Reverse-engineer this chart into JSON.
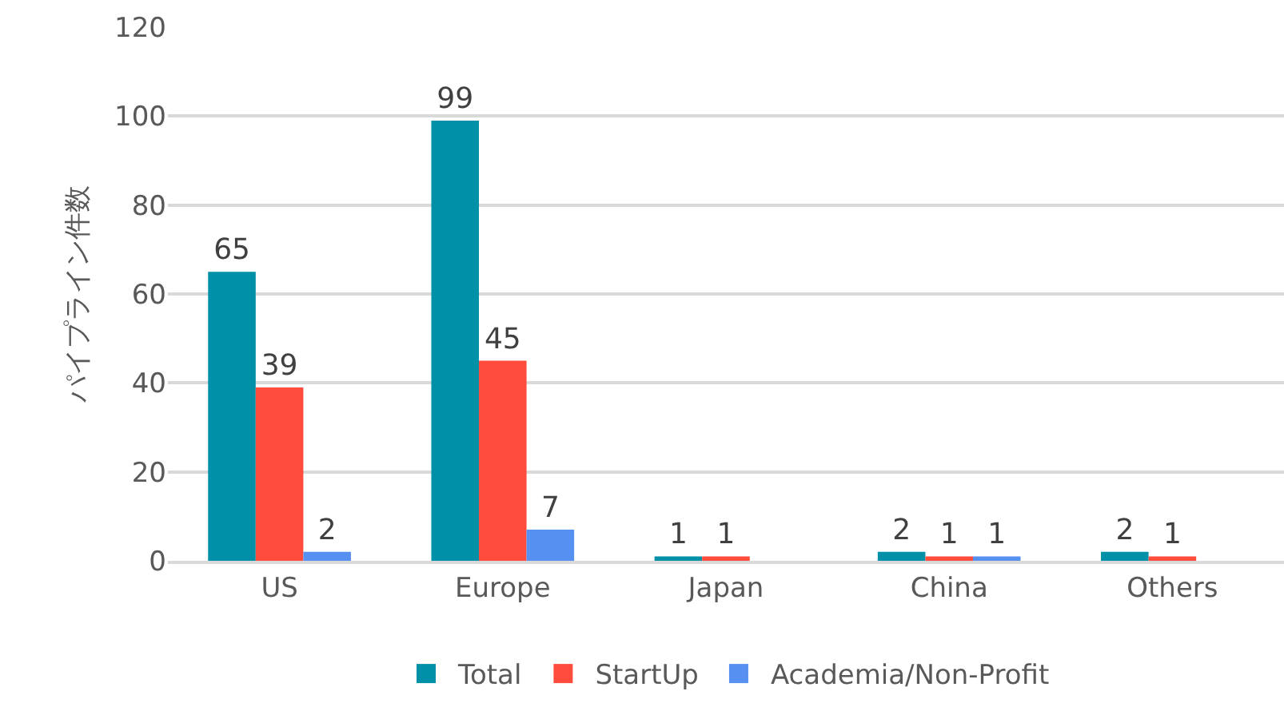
{
  "chart_data": {
    "type": "bar",
    "ylabel": "パイプライン件数",
    "categories": [
      "US",
      "Europe",
      "Japan",
      "China",
      "Others"
    ],
    "series": [
      {
        "name": "Total",
        "color": "#0090a8",
        "values": [
          65,
          99,
          1,
          2,
          2
        ]
      },
      {
        "name": "StartUp",
        "color": "#ff4c3c",
        "values": [
          39,
          45,
          1,
          1,
          1
        ]
      },
      {
        "name": "Academia/Non-Profit",
        "color": "#5690f0",
        "values": [
          2,
          7,
          null,
          1,
          null
        ]
      }
    ],
    "ylim": [
      0,
      120
    ],
    "yticks": [
      0,
      20,
      40,
      60,
      80,
      100,
      120
    ],
    "grid": "y",
    "legend": "bottom",
    "data_labels": true
  }
}
